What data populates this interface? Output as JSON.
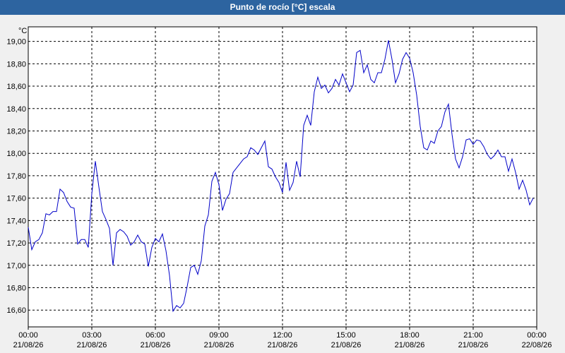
{
  "chart_data": {
    "type": "line",
    "title": "Punto de rocío [°C] escala",
    "ylabel": "°C",
    "x": [
      0,
      10,
      20,
      30,
      40,
      50,
      60,
      70,
      80,
      90,
      100,
      110,
      120,
      130,
      140,
      150,
      160,
      170,
      180,
      190,
      200,
      210,
      220,
      230,
      240,
      250,
      260,
      270,
      280,
      290,
      300,
      310,
      320,
      330,
      340,
      350,
      360,
      370,
      380,
      390,
      400,
      410,
      420,
      430,
      440,
      450,
      460,
      470,
      480,
      490,
      500,
      510,
      520,
      530,
      540,
      550,
      560,
      570,
      580,
      590,
      600,
      610,
      620,
      630,
      640,
      650,
      660,
      670,
      680,
      690,
      700,
      710,
      720,
      730,
      740,
      750,
      760,
      770,
      780,
      790,
      800,
      810,
      820,
      830,
      840,
      850,
      860,
      870,
      880,
      890,
      900,
      910,
      920,
      930,
      940,
      950,
      960,
      970,
      980,
      990,
      1000,
      1010,
      1020,
      1030,
      1040,
      1050,
      1060,
      1070,
      1080,
      1090,
      1100,
      1110,
      1120,
      1130,
      1140,
      1150,
      1160,
      1170,
      1180,
      1190,
      1200,
      1210,
      1220,
      1230,
      1240,
      1250,
      1260,
      1270,
      1280,
      1290,
      1300,
      1310,
      1320,
      1330,
      1340,
      1350,
      1360,
      1370,
      1380,
      1390,
      1400,
      1410,
      1420,
      1430
    ],
    "series": [
      {
        "name": "Punto de rocío",
        "color": "#0000c8",
        "values": [
          17.34,
          17.14,
          17.21,
          17.23,
          17.29,
          17.46,
          17.45,
          17.48,
          17.48,
          17.68,
          17.65,
          17.57,
          17.52,
          17.51,
          17.19,
          17.23,
          17.23,
          17.16,
          17.64,
          17.93,
          17.7,
          17.48,
          17.41,
          17.33,
          17.0,
          17.29,
          17.32,
          17.3,
          17.26,
          17.18,
          17.21,
          17.27,
          17.21,
          17.19,
          16.99,
          17.16,
          17.24,
          17.21,
          17.28,
          17.13,
          16.91,
          16.59,
          16.64,
          16.62,
          16.66,
          16.81,
          16.98,
          17.0,
          16.92,
          17.04,
          17.35,
          17.45,
          17.75,
          17.83,
          17.72,
          17.49,
          17.59,
          17.64,
          17.83,
          17.87,
          17.91,
          17.95,
          17.97,
          18.05,
          18.03,
          17.99,
          18.05,
          18.11,
          17.88,
          17.86,
          17.79,
          17.74,
          17.65,
          17.92,
          17.67,
          17.74,
          17.93,
          17.79,
          18.25,
          18.34,
          18.25,
          18.55,
          18.68,
          18.58,
          18.61,
          18.54,
          18.58,
          18.66,
          18.61,
          18.71,
          18.63,
          18.55,
          18.61,
          18.9,
          18.92,
          18.72,
          18.79,
          18.66,
          18.63,
          18.72,
          18.72,
          18.84,
          19.01,
          18.84,
          18.63,
          18.71,
          18.84,
          18.9,
          18.85,
          18.72,
          18.52,
          18.24,
          18.05,
          18.03,
          18.11,
          18.09,
          18.2,
          18.24,
          18.37,
          18.44,
          18.17,
          17.95,
          17.87,
          17.97,
          18.12,
          18.13,
          18.08,
          18.12,
          18.11,
          18.06,
          17.99,
          17.95,
          17.98,
          18.03,
          17.97,
          17.97,
          17.84,
          17.95,
          17.83,
          17.68,
          17.76,
          17.67,
          17.54,
          17.6
        ]
      }
    ],
    "xlim": [
      0,
      1440
    ],
    "xticks": [
      {
        "value": 0,
        "label": [
          "00:00",
          "21/08/26"
        ]
      },
      {
        "value": 180,
        "label": [
          "03:00",
          "21/08/26"
        ]
      },
      {
        "value": 360,
        "label": [
          "06:00",
          "21/08/26"
        ]
      },
      {
        "value": 540,
        "label": [
          "09:00",
          "21/08/26"
        ]
      },
      {
        "value": 720,
        "label": [
          "12:00",
          "21/08/26"
        ]
      },
      {
        "value": 900,
        "label": [
          "15:00",
          "21/08/26"
        ]
      },
      {
        "value": 1080,
        "label": [
          "18:00",
          "21/08/26"
        ]
      },
      {
        "value": 1260,
        "label": [
          "21:00",
          "21/08/26"
        ]
      },
      {
        "value": 1440,
        "label": [
          "00:00",
          "22/08/26"
        ]
      }
    ],
    "ylim": [
      16.45,
      19.13
    ],
    "yticks": [
      {
        "value": 16.6,
        "label": "16,60"
      },
      {
        "value": 16.8,
        "label": "16,80"
      },
      {
        "value": 17.0,
        "label": "17,00"
      },
      {
        "value": 17.2,
        "label": "17,20"
      },
      {
        "value": 17.4,
        "label": "17,40"
      },
      {
        "value": 17.6,
        "label": "17,60"
      },
      {
        "value": 17.8,
        "label": "17,80"
      },
      {
        "value": 18.0,
        "label": "18,00"
      },
      {
        "value": 18.2,
        "label": "18,20"
      },
      {
        "value": 18.4,
        "label": "18,40"
      },
      {
        "value": 18.6,
        "label": "18,60"
      },
      {
        "value": 18.8,
        "label": "18,80"
      },
      {
        "value": 19.0,
        "label": "19,00"
      }
    ],
    "grid": true
  }
}
